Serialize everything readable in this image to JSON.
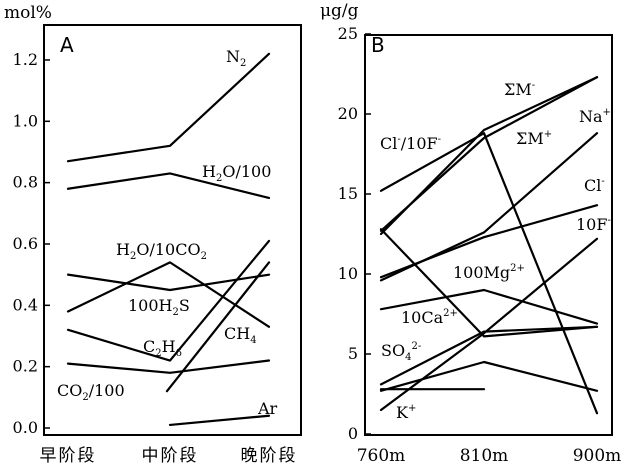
{
  "chart_data": [
    {
      "type": "line",
      "panel": "A",
      "ylabel": "mol%",
      "ylim": [
        0,
        1.35
      ],
      "yticks": [
        "0.0",
        "0.2",
        "0.4",
        "0.6",
        "0.8",
        "1.0",
        "1.2"
      ],
      "categories": [
        "早阶段",
        "中阶段",
        "晚阶段"
      ],
      "series": [
        {
          "name": "N2",
          "label": "N",
          "sub": "2",
          "x": [
            0,
            1,
            2
          ],
          "y": [
            0.87,
            0.92,
            1.22
          ]
        },
        {
          "name": "H2O/100",
          "label": "H",
          "sub": "2",
          "tail": "O/100",
          "x": [
            0,
            1,
            2
          ],
          "y": [
            0.78,
            0.83,
            0.75
          ]
        },
        {
          "name": "H2O/10CO2",
          "label": "H",
          "sub": "2",
          "tail": "O/10CO",
          "sub2": "2",
          "x": [
            0,
            1,
            2
          ],
          "y": [
            0.5,
            0.45,
            0.5
          ]
        },
        {
          "name": "100H2S",
          "label": "100H",
          "sub": "2",
          "tail": "S",
          "x": [
            0,
            1,
            2
          ],
          "y": [
            0.38,
            0.54,
            0.33
          ]
        },
        {
          "name": "C2H6",
          "label": "C",
          "sub": "2",
          "tail": "H",
          "sub2": "6",
          "x": [
            0,
            1,
            2
          ],
          "y": [
            0.32,
            0.22,
            0.61
          ]
        },
        {
          "name": "CH4",
          "label": "CH",
          "sub": "4",
          "x": [
            0.97,
            2
          ],
          "y": [
            0.12,
            0.54
          ]
        },
        {
          "name": "CO2/100",
          "label": "CO",
          "sub": "2",
          "tail": "/100",
          "x": [
            0,
            1,
            2
          ],
          "y": [
            0.21,
            0.18,
            0.22
          ]
        },
        {
          "name": "Ar",
          "label": "Ar",
          "x": [
            1,
            2
          ],
          "y": [
            0.01,
            0.04
          ]
        }
      ]
    },
    {
      "type": "line",
      "panel": "B",
      "ylabel": "μg/g",
      "ylim": [
        0,
        25
      ],
      "yticks": [
        "0",
        "5",
        "10",
        "15",
        "20",
        "25"
      ],
      "categories": [
        "760m",
        "810m",
        "900m"
      ],
      "series": [
        {
          "name": "ΣM-",
          "label": "ΣM",
          "sup": "-",
          "x": [
            0,
            1,
            2
          ],
          "y": [
            12.5,
            19.0,
            22.3
          ]
        },
        {
          "name": "ΣM+",
          "label": "ΣM",
          "sup": "+",
          "x": [
            0,
            1,
            2
          ],
          "y": [
            12.7,
            18.5,
            22.3
          ]
        },
        {
          "name": "Cl-/10F-",
          "label": "Cl",
          "sup": "-",
          "tail": "/10F",
          "sup2": "-",
          "x": [
            0,
            1,
            2
          ],
          "y": [
            15.2,
            18.8,
            1.3
          ]
        },
        {
          "name": "Na+",
          "label": "Na",
          "sup": "+",
          "x": [
            0,
            1,
            2
          ],
          "y": [
            9.6,
            12.6,
            18.8
          ]
        },
        {
          "name": "Cl-",
          "label": "Cl",
          "sup": "-",
          "x": [
            0,
            1,
            2
          ],
          "y": [
            9.8,
            12.3,
            14.3
          ]
        },
        {
          "name": "10F-",
          "label": "10F",
          "sup": "-",
          "x": [
            0,
            1,
            2
          ],
          "y": [
            12.8,
            6.1,
            6.7
          ]
        },
        {
          "name": "100Mg2+",
          "label": "100Mg",
          "sup": "2+",
          "x": [
            0,
            1,
            2
          ],
          "y": [
            7.8,
            9.0,
            6.9
          ]
        },
        {
          "name": "10Ca2+",
          "label": "10Ca",
          "sup": "2+",
          "x": [
            0,
            1,
            2
          ],
          "y": [
            3.1,
            6.4,
            6.7
          ]
        },
        {
          "name": "SO42-",
          "label": "SO",
          "sub": "4",
          "sup": "2-",
          "x": [
            0,
            1,
            2
          ],
          "y": [
            2.7,
            4.5,
            2.7
          ]
        },
        {
          "name": "K+",
          "label": "K",
          "sup": "+",
          "x": [
            0,
            1,
            2
          ],
          "y": [
            1.5,
            6.3,
            12.2
          ]
        },
        {
          "name": "flat",
          "x": [
            0,
            1
          ],
          "y": [
            2.8,
            2.8
          ]
        }
      ]
    }
  ]
}
